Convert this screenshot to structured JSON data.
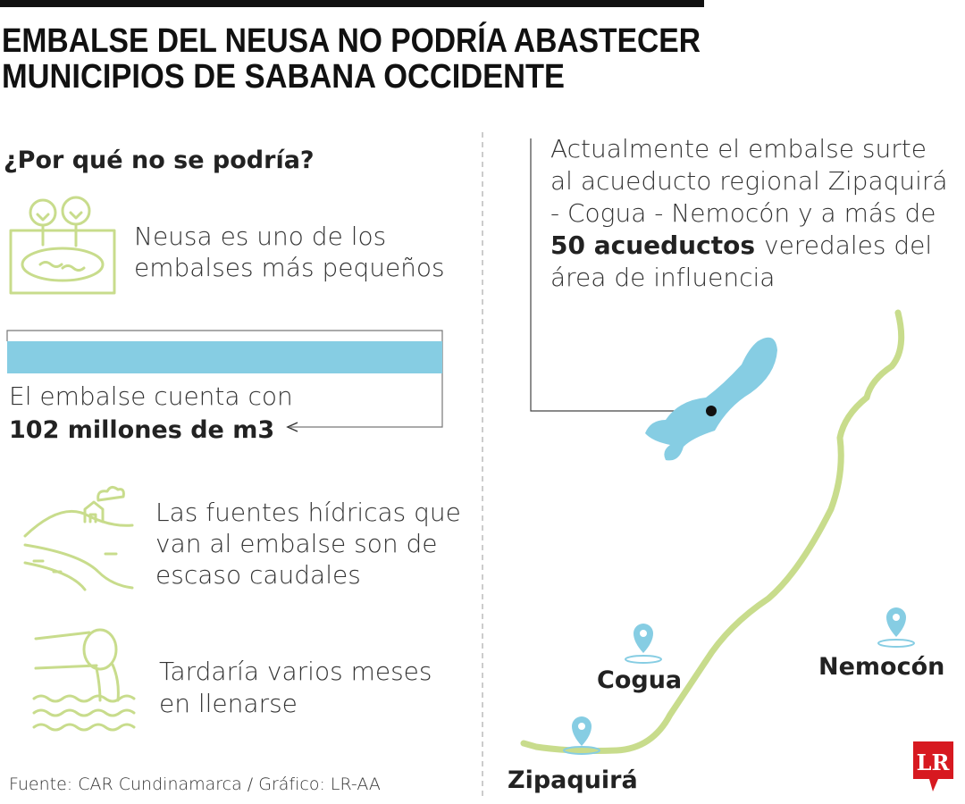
{
  "header": {
    "title_lines": [
      "EMBALSE DEL NEUSA NO PODRÍA ABASTECER",
      "MUNICIPIOS DE SABANA OCCIDENTE"
    ]
  },
  "left": {
    "question": "¿Por qué no se podría?",
    "reasons": [
      {
        "lines": [
          "Neusa es uno de los",
          "embalses más pequeños"
        ]
      },
      {
        "lines": [
          "Las fuentes hídricas que",
          "van al embalse son de",
          "escaso caudales"
        ]
      },
      {
        "lines": [
          "Tardaría varios meses",
          "en llenarse"
        ]
      }
    ],
    "capacity": {
      "text": "El embalse cuenta con",
      "highlight": "102 millones de m3"
    }
  },
  "right": {
    "annotation": {
      "lines": [
        "Actualmente el embalse surte",
        "al acueducto regional Zipaquirá",
        "- Cogua - Nemocón y a más de"
      ],
      "highlight": "50 acueductos",
      "after": [
        "veredales del",
        "área de influencia"
      ]
    },
    "places": [
      "Cogua",
      "Nemocón",
      "Zipaquirá"
    ]
  },
  "footer": {
    "source": "Fuente: CAR Cundinamarca / Gráfico: LR-AA",
    "logo": "LR"
  }
}
